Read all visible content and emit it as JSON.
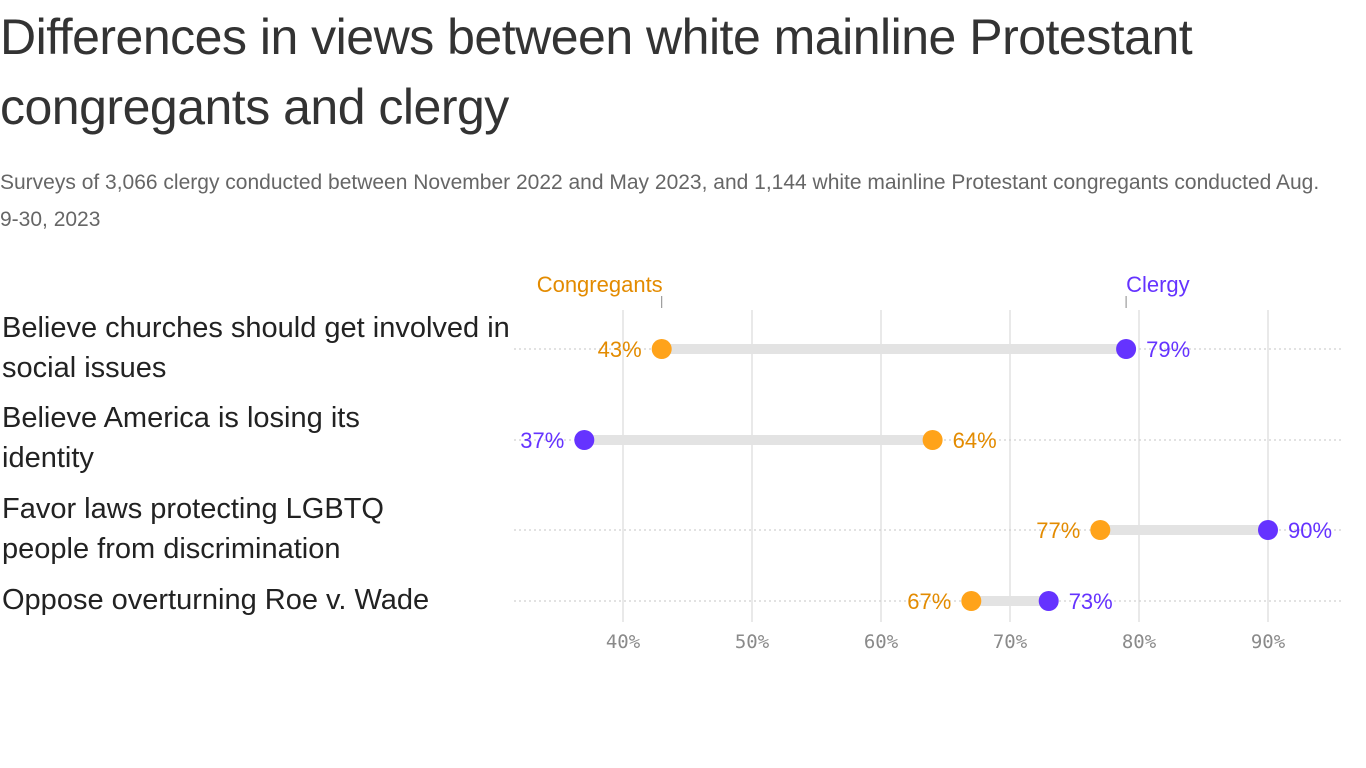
{
  "title": "Differences in views between white mainline Protestant congregants and clergy",
  "subtitle": "Surveys of 3,066 clergy conducted between November 2022 and May 2023, and 1,144 white mainline Protestant congregants conducted Aug. 9-30, 2023",
  "chart_data": {
    "type": "dumbbell",
    "categories": [
      "Believe churches should get involved in social issues",
      "Believe America is losing its identity",
      "Favor laws protecting LGBTQ people from discrimination",
      "Oppose overturning Roe v. Wade"
    ],
    "series": [
      {
        "name": "Congregants",
        "color": "#ffa31a",
        "label_color": "#e38b00",
        "values": [
          43,
          64,
          77,
          67
        ]
      },
      {
        "name": "Clergy",
        "color": "#6533ff",
        "label_color": "#6533ff",
        "values": [
          79,
          37,
          90,
          73
        ]
      }
    ],
    "value_labels": {
      "Congregants": [
        "43%",
        "64%",
        "77%",
        "67%"
      ],
      "Clergy": [
        "79%",
        "37%",
        "90%",
        "73%"
      ]
    },
    "x_ticks": [
      40,
      50,
      60,
      70,
      80,
      90
    ],
    "x_tick_labels": [
      "40%",
      "50%",
      "60%",
      "70%",
      "80%",
      "90%"
    ],
    "xlim": [
      31.5,
      96
    ],
    "grid": true,
    "legend_placement": "top, labels over first row's points"
  }
}
